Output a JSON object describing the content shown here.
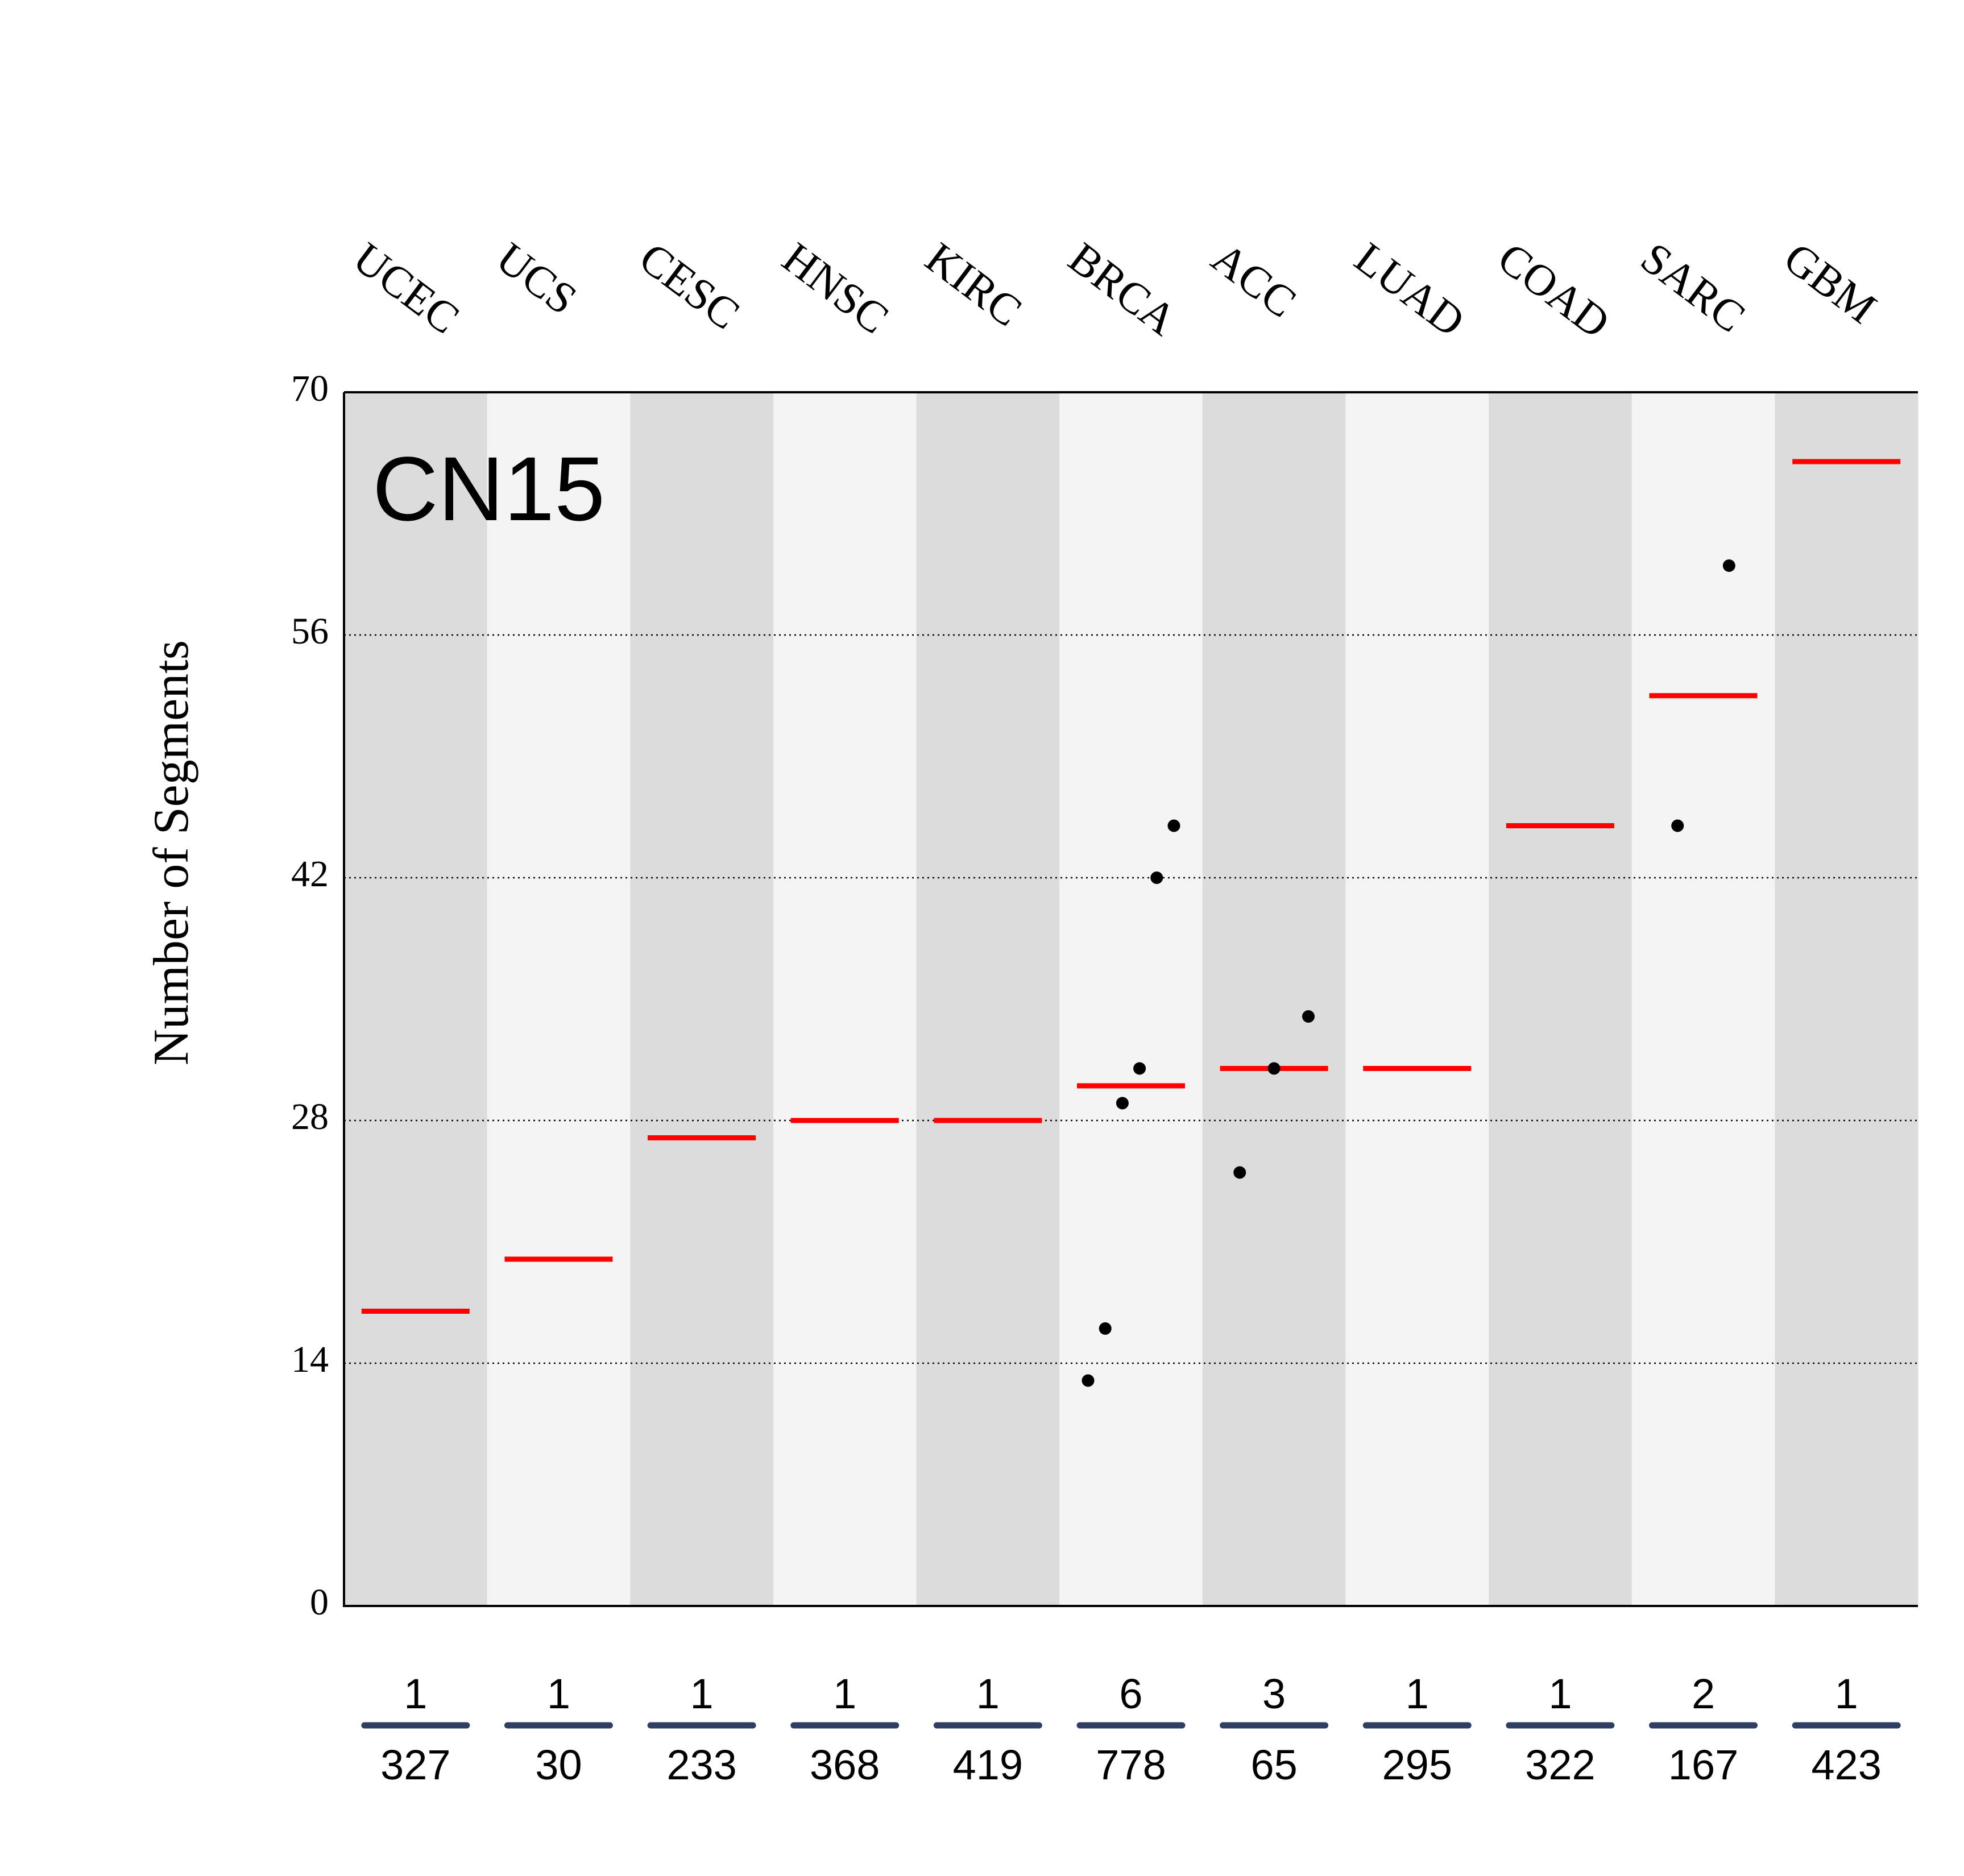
{
  "chart_data": {
    "type": "scatter",
    "title": "CN15",
    "ylabel": "Number of Segments",
    "ylim": [
      0,
      70
    ],
    "yticks": [
      "0",
      "14",
      "28",
      "42",
      "56",
      "70"
    ],
    "grid": "horizontal dotted at 14, 28, 42, 56",
    "categories": [
      "UCEC",
      "UCS",
      "CESC",
      "HNSC",
      "KIRC",
      "BRCA",
      "ACC",
      "LUAD",
      "COAD",
      "SARC",
      "GBM"
    ],
    "numerators": [
      "1",
      "1",
      "1",
      "1",
      "1",
      "6",
      "3",
      "1",
      "1",
      "2",
      "1"
    ],
    "denominators": [
      "327",
      "30",
      "233",
      "368",
      "419",
      "778",
      "65",
      "295",
      "322",
      "167",
      "423"
    ],
    "points": [
      [
        17
      ],
      [
        20
      ],
      [
        27
      ],
      [
        28
      ],
      [
        28
      ],
      [
        13,
        16,
        29,
        31,
        42,
        45
      ],
      [
        25,
        31,
        34
      ],
      [
        31
      ],
      [
        45
      ],
      [
        45,
        60
      ],
      [
        66
      ]
    ],
    "medians": [
      17,
      20,
      27,
      28,
      28,
      30,
      31,
      31,
      45,
      52.5,
      66
    ],
    "colors": {
      "median": "#ff0000",
      "point": "#000000",
      "band_dark": "#dcdcdc",
      "band_light": "#f4f4f4",
      "fraction_bar": "#2e3f63"
    }
  }
}
